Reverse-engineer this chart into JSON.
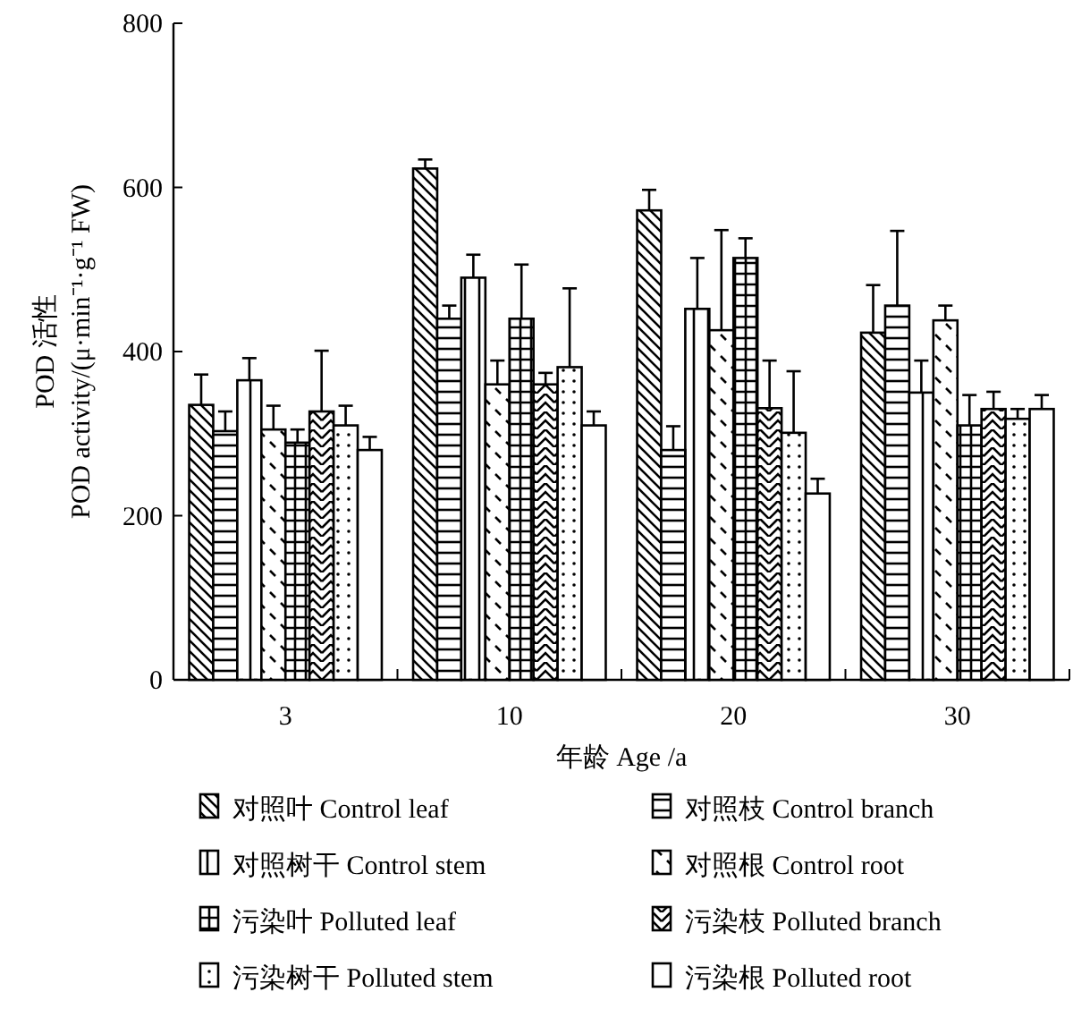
{
  "chart_data": {
    "type": "bar",
    "xlabel": "年龄 Age /a",
    "ylabel": "POD 活性\nPOD activity/(μ·min⁻¹·g⁻¹ FW)",
    "categories": [
      "3",
      "10",
      "20",
      "30"
    ],
    "ylim": [
      0,
      800
    ],
    "yticks": [
      0,
      200,
      400,
      600,
      800
    ],
    "legend": "bottom",
    "grid": false,
    "series": [
      {
        "name": "对照叶 Control leaf",
        "color": "#000000",
        "values": [
          335,
          623,
          572,
          423
        ],
        "errors": [
          37,
          11,
          25,
          58
        ]
      },
      {
        "name": "对照枝 Control branch",
        "color": "#000000",
        "values": [
          303,
          440,
          280,
          456
        ],
        "errors": [
          24,
          16,
          29,
          91
        ]
      },
      {
        "name": "对照树干 Control stem",
        "color": "#000000",
        "values": [
          365,
          490,
          452,
          350
        ],
        "errors": [
          27,
          28,
          62,
          39
        ]
      },
      {
        "name": "对照根 Control root",
        "color": "#000000",
        "values": [
          305,
          360,
          426,
          438
        ],
        "errors": [
          29,
          29,
          122,
          18
        ]
      },
      {
        "name": "污染叶 Polluted leaf",
        "color": "#000000",
        "values": [
          289,
          440,
          514,
          310
        ],
        "errors": [
          16,
          66,
          24,
          37
        ]
      },
      {
        "name": "污染枝 Polluted branch",
        "color": "#000000",
        "values": [
          327,
          360,
          331,
          330
        ],
        "errors": [
          74,
          14,
          58,
          21
        ]
      },
      {
        "name": "污染树干 Polluted stem",
        "color": "#000000",
        "values": [
          310,
          381,
          301,
          318
        ],
        "errors": [
          24,
          96,
          75,
          12
        ]
      },
      {
        "name": "污染根 Polluted root",
        "color": "#000000",
        "values": [
          280,
          310,
          227,
          330
        ],
        "errors": [
          16,
          17,
          18,
          17
        ]
      }
    ]
  }
}
